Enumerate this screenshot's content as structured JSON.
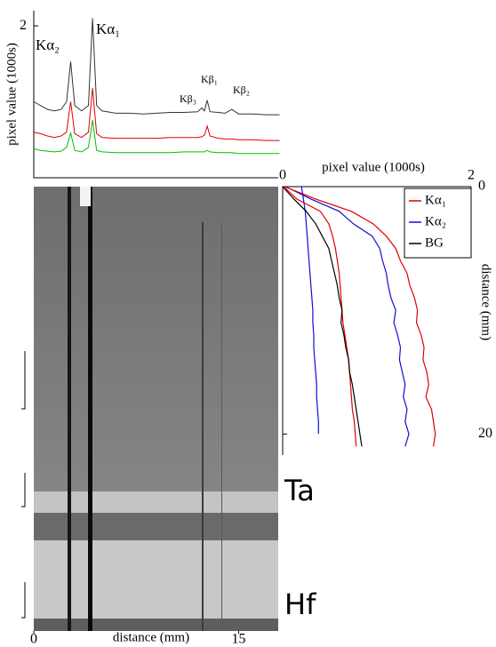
{
  "chart_data": [
    {
      "type": "line",
      "ylabel": "pixel value (1000s)",
      "annotations": [
        "Kα₂",
        "Kα₁",
        "Kβ₃",
        "Kβ₁",
        "Kβ₂"
      ],
      "x": [
        0,
        0.5,
        1,
        1.5,
        2,
        2.4,
        2.7,
        3.0,
        3.5,
        4.0,
        4.3,
        4.6,
        5,
        6,
        7,
        8,
        9,
        10,
        11,
        12,
        12.3,
        12.5,
        12.7,
        12.9,
        13.5,
        14,
        14.5,
        15,
        16,
        17,
        18
      ],
      "xlim": [
        0,
        17.9
      ],
      "ylim": [
        0,
        2.2
      ],
      "yticks": [
        2
      ],
      "series": [
        {
          "color": "#333333",
          "values": [
            1.0,
            0.95,
            0.9,
            0.88,
            0.9,
            1.0,
            1.53,
            0.95,
            0.88,
            0.95,
            2.1,
            0.95,
            0.88,
            0.85,
            0.85,
            0.84,
            0.85,
            0.86,
            0.86,
            0.87,
            0.92,
            0.88,
            1.02,
            0.87,
            0.86,
            0.85,
            0.9,
            0.84,
            0.84,
            0.83,
            0.83
          ]
        },
        {
          "color": "#e00000",
          "values": [
            0.6,
            0.58,
            0.55,
            0.53,
            0.55,
            0.6,
            1.0,
            0.58,
            0.53,
            0.6,
            1.18,
            0.58,
            0.53,
            0.52,
            0.52,
            0.52,
            0.52,
            0.53,
            0.53,
            0.53,
            0.54,
            0.56,
            0.68,
            0.55,
            0.52,
            0.51,
            0.51,
            0.5,
            0.5,
            0.49,
            0.49
          ]
        },
        {
          "color": "#00c000",
          "values": [
            0.38,
            0.36,
            0.35,
            0.34,
            0.35,
            0.4,
            0.59,
            0.36,
            0.34,
            0.4,
            0.76,
            0.36,
            0.34,
            0.33,
            0.33,
            0.33,
            0.33,
            0.33,
            0.34,
            0.34,
            0.34,
            0.34,
            0.36,
            0.34,
            0.33,
            0.33,
            0.33,
            0.32,
            0.32,
            0.32,
            0.32
          ]
        }
      ]
    },
    {
      "type": "line",
      "xlabel": "pixel value (1000s)",
      "ylabel": "distance (mm)",
      "y": [
        0,
        1,
        2,
        3,
        4,
        5,
        6,
        7,
        8,
        9,
        10,
        11,
        12,
        13,
        14,
        15,
        16,
        17,
        18,
        19,
        20,
        21
      ],
      "xlim": [
        0,
        2
      ],
      "ylim": [
        0,
        21.7
      ],
      "xticks": [
        0,
        2
      ],
      "yticks": [
        0,
        20
      ],
      "legend": "upper right",
      "series": [
        {
          "color": "#1010d0",
          "values": [
            0.2,
            0.22,
            0.24,
            0.25,
            0.26,
            0.27,
            0.28,
            0.29,
            0.3,
            0.31,
            0.32,
            0.32,
            0.33,
            0.33,
            0.34,
            0.35,
            0.36,
            0.36,
            0.37,
            0.38,
            0.38,
            null
          ]
        },
        {
          "color": "#e00000",
          "values": [
            0.01,
            0.15,
            0.4,
            0.49,
            0.53,
            0.56,
            0.58,
            0.6,
            0.61,
            0.62,
            0.63,
            0.64,
            0.66,
            0.68,
            0.7,
            0.71,
            0.72,
            0.73,
            0.74,
            0.76,
            0.77,
            0.78
          ]
        },
        {
          "name": "BG",
          "color": "#000000",
          "values": [
            0.0,
            0.12,
            0.25,
            0.35,
            0.42,
            0.49,
            0.52,
            0.55,
            0.58,
            0.6,
            0.63,
            0.62,
            0.65,
            0.67,
            0.7,
            0.71,
            0.74,
            0.76,
            0.78,
            0.8,
            0.82,
            0.84
          ]
        },
        {
          "name": "Kα₂",
          "color": "#1010d0",
          "values": [
            0.03,
            0.3,
            0.6,
            0.75,
            0.95,
            1.03,
            1.06,
            1.1,
            1.12,
            1.15,
            1.2,
            1.18,
            1.22,
            1.25,
            1.24,
            1.27,
            1.3,
            1.28,
            1.32,
            1.3,
            1.34,
            1.3
          ]
        },
        {
          "name": "Kα₁",
          "color": "#e00000",
          "values": [
            0.02,
            0.35,
            0.73,
            0.96,
            1.1,
            1.2,
            1.25,
            1.32,
            1.35,
            1.4,
            1.43,
            1.42,
            1.47,
            1.5,
            1.49,
            1.53,
            1.55,
            1.52,
            1.58,
            1.6,
            1.62,
            1.6
          ]
        }
      ]
    },
    {
      "type": "image",
      "xlabel": "distance (mm)",
      "xlim": [
        0,
        17.9
      ],
      "xticks": [
        0,
        15
      ],
      "labels": [
        "Ta",
        "Hf"
      ]
    }
  ]
}
